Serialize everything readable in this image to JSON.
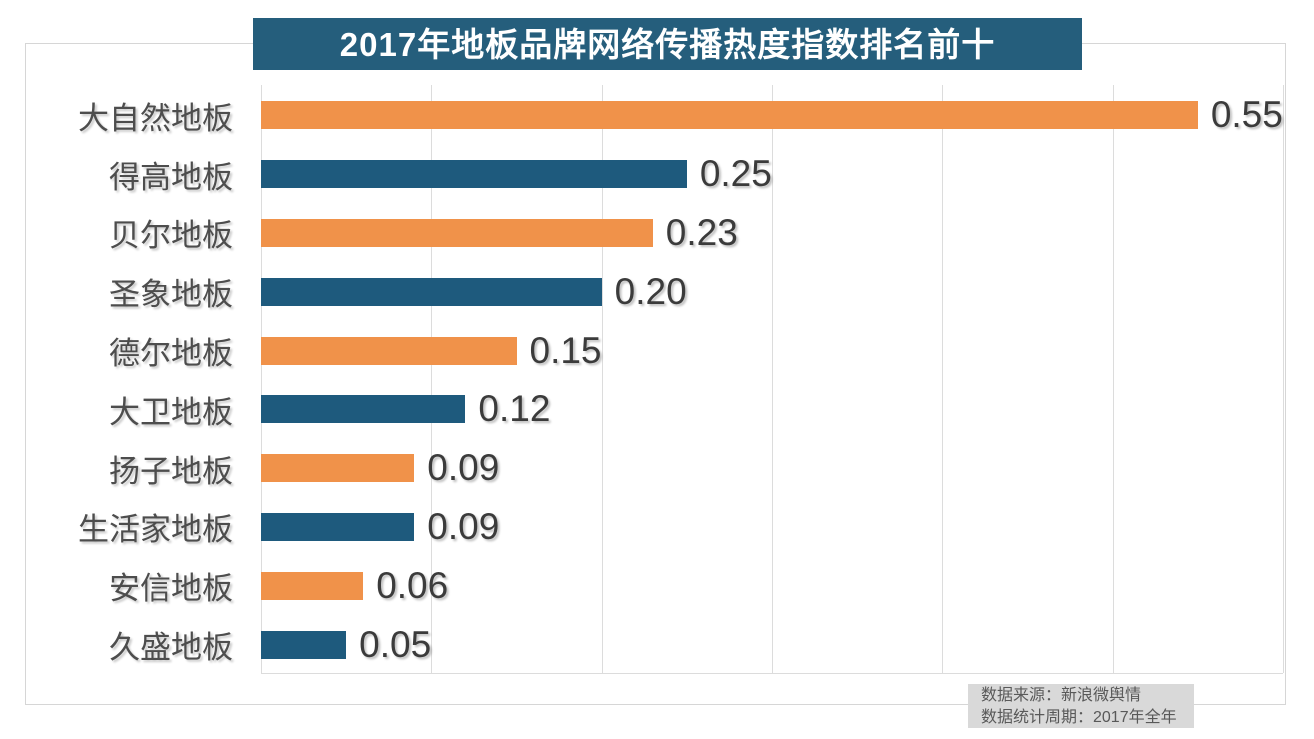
{
  "title": "2017年地板品牌网络传播热度指数排名前十",
  "footer": {
    "source": "数据来源：新浪微舆情",
    "period": "数据统计周期：2017年全年"
  },
  "colors": {
    "banner_bg": "#255e7c",
    "banner_text": "#ffffff",
    "bar_orange": "#f0924a",
    "bar_blue": "#1e5a7d",
    "gridline": "#dcdcdc",
    "category_text": "#4d4d4d",
    "value_text": "#3b3b3b",
    "footer_bg": "#d9d9d9",
    "footer_text": "#595959"
  },
  "chart_data": {
    "type": "bar",
    "orientation": "horizontal",
    "title": "2017年地板品牌网络传播热度指数排名前十",
    "categories": [
      "大自然地板",
      "得高地板",
      "贝尔地板",
      "圣象地板",
      "德尔地板",
      "大卫地板",
      "扬子地板",
      "生活家地板",
      "安信地板",
      "久盛地板"
    ],
    "values": [
      0.55,
      0.25,
      0.23,
      0.2,
      0.15,
      0.12,
      0.09,
      0.09,
      0.06,
      0.05
    ],
    "value_labels": [
      "0.55",
      "0.25",
      "0.23",
      "0.20",
      "0.15",
      "0.12",
      "0.09",
      "0.09",
      "0.06",
      "0.05"
    ],
    "xlim": [
      0,
      0.6
    ],
    "gridline_interval": 0.1,
    "grid": true,
    "tick_labels_shown": false,
    "legend": null,
    "bar_colors_alternating": [
      "#f0924a",
      "#1e5a7d"
    ],
    "data_source_note": "数据来源：新浪微舆情",
    "data_period_note": "数据统计周期：2017年全年"
  }
}
